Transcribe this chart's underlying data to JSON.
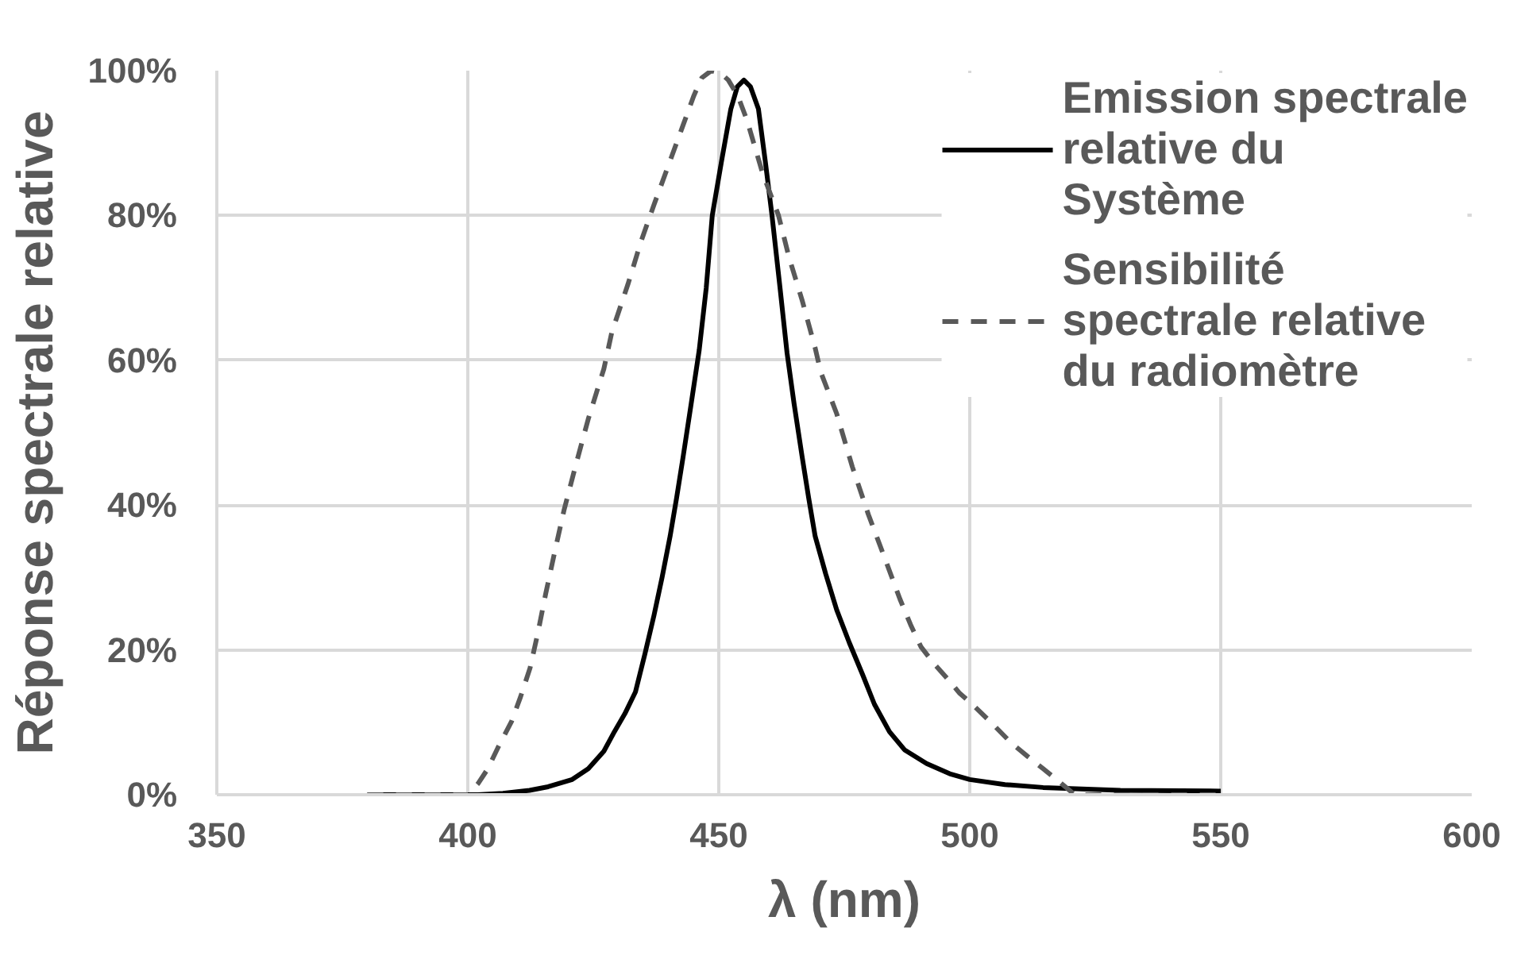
{
  "chart_data": {
    "type": "line",
    "xlabel": "λ (nm)",
    "ylabel": "Réponse spectrale relative",
    "xlim": [
      350,
      600
    ],
    "xticks": [
      350,
      400,
      450,
      500,
      550,
      600
    ],
    "ylim": [
      0,
      100
    ],
    "yticks": [
      {
        "value": 0,
        "label": "0%"
      },
      {
        "value": 20,
        "label": "20%"
      },
      {
        "value": 40,
        "label": "40%"
      },
      {
        "value": 60,
        "label": "60%"
      },
      {
        "value": 80,
        "label": "80%"
      },
      {
        "value": 100,
        "label": "100%"
      }
    ],
    "grid": true,
    "legend": "top right",
    "series": [
      {
        "name": "Emission spectrale relative du Système",
        "color": "#000000",
        "line_style": "solid",
        "x": [
          380,
          395,
          402,
          407,
          412.3,
          416,
          420.8,
          424,
          427.1,
          429.2,
          431.3,
          433.4,
          435.3,
          437.1,
          438.7,
          440.3,
          441.6,
          442.9,
          444.5,
          446.1,
          447.5,
          448.7,
          450.5,
          452.4,
          453.7,
          455,
          456.3,
          457.9,
          459.3,
          460.6,
          462.2,
          463.6,
          465,
          466.6,
          467.9,
          469.2,
          471.3,
          473.5,
          476,
          478.7,
          481,
          484,
          487,
          491.4,
          496,
          500,
          507,
          514.6,
          530,
          550
        ],
        "values": [
          0,
          0,
          0,
          0.2,
          0.6,
          1.1,
          2.1,
          3.6,
          6.0,
          8.7,
          11.2,
          14.2,
          19.5,
          24.8,
          30,
          35.7,
          41,
          46.7,
          54,
          61.4,
          70,
          80,
          87.3,
          94.7,
          97.8,
          98.7,
          97.8,
          94.7,
          87.3,
          80,
          70,
          61,
          54,
          46.7,
          41,
          35.7,
          30.5,
          25.5,
          21,
          16.5,
          12.5,
          8.7,
          6.2,
          4.3,
          2.9,
          2.1,
          1.4,
          1.0,
          0.6,
          0.5
        ]
      },
      {
        "name": "Sensibilité spectrale relative du radiomètre",
        "color": "#595959",
        "line_style": "dashed",
        "x": [
          380,
          390,
          400,
          402,
          404,
          406,
          408.7,
          410.5,
          412.4,
          414,
          415.5,
          417.3,
          419.2,
          421.5,
          424,
          427.1,
          428.7,
          431.9,
          434.5,
          437.1,
          439.8,
          442.9,
          445,
          446.6,
          448.5,
          450.3,
          451.9,
          453.8,
          455.6,
          458.7,
          461.9,
          464,
          466.6,
          469.2,
          470.3,
          473.5,
          476.6,
          479.8,
          483,
          486.1,
          488.2,
          490.3,
          493,
          495.6,
          498,
          500.8,
          504.5,
          508.2,
          511.5,
          514.6,
          518,
          520.9,
          535,
          550
        ],
        "values": [
          0,
          0,
          0,
          1.5,
          3.6,
          6.5,
          10.1,
          13.5,
          17.5,
          22.5,
          27.7,
          33.5,
          39.4,
          45.5,
          51.9,
          58.8,
          63.9,
          70.5,
          76.4,
          81.5,
          86.6,
          92.5,
          96.5,
          99,
          100,
          99.7,
          98.7,
          96.5,
          93.2,
          85.9,
          80,
          74.2,
          68.3,
          61.7,
          58.4,
          52.6,
          45.3,
          38.7,
          32.8,
          27,
          23.5,
          20.4,
          18,
          16,
          14,
          12.3,
          9.8,
          7.2,
          5.3,
          3.6,
          1.7,
          0,
          0,
          0
        ]
      }
    ]
  }
}
